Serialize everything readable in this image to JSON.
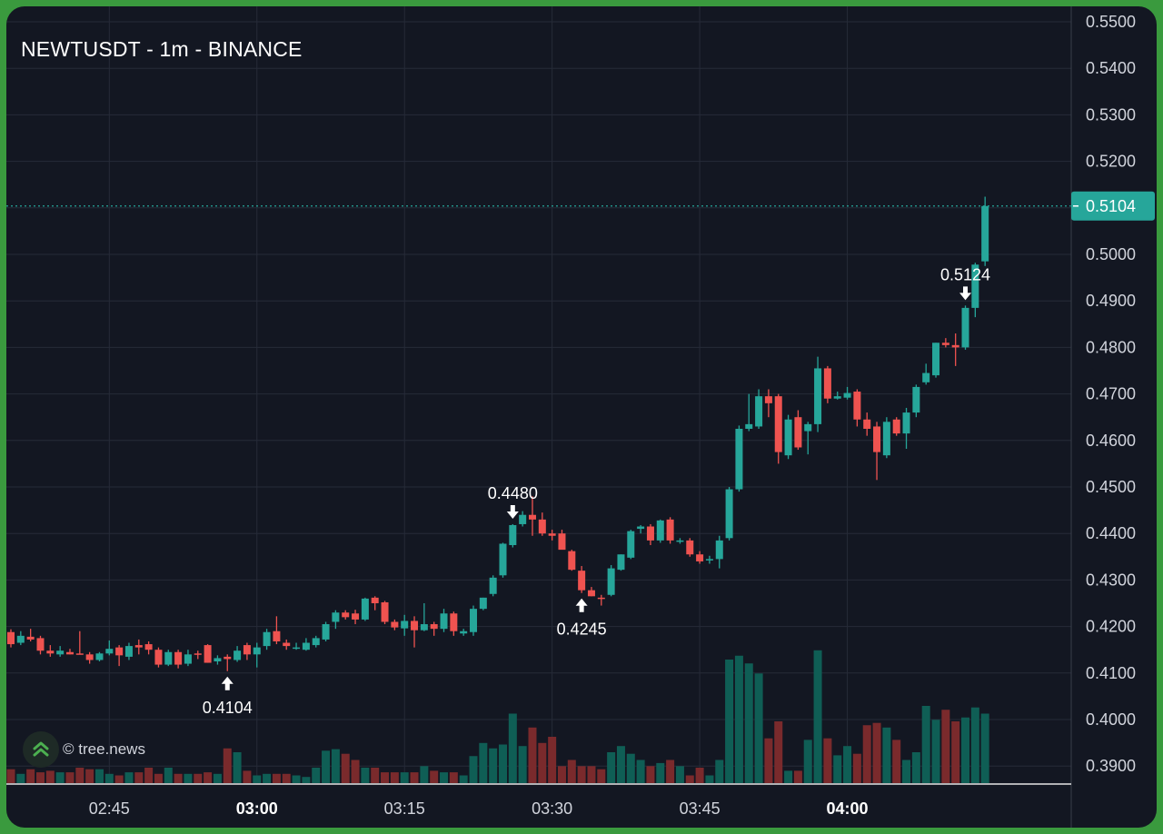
{
  "header": {
    "title": "NEWTUSDT - 1m - BINANCE"
  },
  "watermark": {
    "text": "© tree.news",
    "icon": "tree-news-logo-icon"
  },
  "colors": {
    "background": "#131722",
    "grid": "#262b38",
    "up": "#26a69a",
    "down": "#ef5350",
    "up_volume": "#0f5e55",
    "down_volume": "#7a2a2c",
    "price_line": "#26a69a",
    "text": "#d1d4dc"
  },
  "chart_data": {
    "type": "candlestick",
    "symbol": "NEWTUSDT",
    "interval": "1m",
    "exchange": "BINANCE",
    "y_ticks": [
      "0.5500",
      "0.5400",
      "0.5300",
      "0.5200",
      "0.5100",
      "0.5000",
      "0.4900",
      "0.4800",
      "0.4700",
      "0.4600",
      "0.4500",
      "0.4400",
      "0.4300",
      "0.4200",
      "0.4100",
      "0.4000",
      "0.3900"
    ],
    "ylim": [
      0.388,
      0.553
    ],
    "x_ticks": [
      {
        "label": "02:45",
        "index": 10,
        "bold": false
      },
      {
        "label": "03:00",
        "index": 25,
        "bold": true
      },
      {
        "label": "03:15",
        "index": 40,
        "bold": false
      },
      {
        "label": "03:30",
        "index": 55,
        "bold": false
      },
      {
        "label": "03:45",
        "index": 70,
        "bold": false
      },
      {
        "label": "04:00",
        "index": 85,
        "bold": true
      }
    ],
    "last_price": "0.5104",
    "last_price_value": 0.5104,
    "annotations": [
      {
        "label": "0.4104",
        "value": 0.4104,
        "index": 22,
        "type": "low"
      },
      {
        "label": "0.4480",
        "value": 0.448,
        "index": 51,
        "type": "high"
      },
      {
        "label": "0.4245",
        "value": 0.4245,
        "index": 58,
        "type": "low"
      },
      {
        "label": "0.5124",
        "value": 0.5124,
        "index": 97,
        "type": "high"
      }
    ],
    "candles": [
      [
        0.4188,
        0.4194,
        0.4155,
        0.4162
      ],
      [
        0.4165,
        0.419,
        0.416,
        0.418
      ],
      [
        0.4178,
        0.4195,
        0.4168,
        0.4172
      ],
      [
        0.4175,
        0.418,
        0.414,
        0.4148
      ],
      [
        0.4148,
        0.416,
        0.4135,
        0.4142
      ],
      [
        0.414,
        0.4158,
        0.4135,
        0.4148
      ],
      [
        0.4145,
        0.4152,
        0.414,
        0.414
      ],
      [
        0.4142,
        0.419,
        0.414,
        0.414
      ],
      [
        0.414,
        0.4145,
        0.412,
        0.4128
      ],
      [
        0.4128,
        0.4145,
        0.4125,
        0.4142
      ],
      [
        0.4142,
        0.417,
        0.4138,
        0.4152
      ],
      [
        0.4155,
        0.416,
        0.4115,
        0.4138
      ],
      [
        0.4135,
        0.4165,
        0.4128,
        0.4158
      ],
      [
        0.416,
        0.4172,
        0.414,
        0.4155
      ],
      [
        0.4162,
        0.4168,
        0.414,
        0.415
      ],
      [
        0.415,
        0.4155,
        0.4112,
        0.4118
      ],
      [
        0.4118,
        0.415,
        0.4115,
        0.4145
      ],
      [
        0.4145,
        0.415,
        0.411,
        0.4118
      ],
      [
        0.412,
        0.415,
        0.4115,
        0.414
      ],
      [
        0.4142,
        0.4148,
        0.413,
        0.414
      ],
      [
        0.416,
        0.4162,
        0.4122,
        0.4122
      ],
      [
        0.4125,
        0.4138,
        0.4118,
        0.4132
      ],
      [
        0.4135,
        0.414,
        0.4104,
        0.413
      ],
      [
        0.4128,
        0.4158,
        0.4124,
        0.4148
      ],
      [
        0.416,
        0.4165,
        0.4128,
        0.414
      ],
      [
        0.414,
        0.4165,
        0.4112,
        0.4155
      ],
      [
        0.4158,
        0.4195,
        0.415,
        0.4188
      ],
      [
        0.419,
        0.4222,
        0.4162,
        0.4168
      ],
      [
        0.4165,
        0.4172,
        0.415,
        0.4158
      ],
      [
        0.4155,
        0.4165,
        0.415,
        0.4155
      ],
      [
        0.415,
        0.4175,
        0.4148,
        0.4165
      ],
      [
        0.416,
        0.418,
        0.4155,
        0.4175
      ],
      [
        0.4172,
        0.421,
        0.4168,
        0.4205
      ],
      [
        0.421,
        0.4235,
        0.4195,
        0.423
      ],
      [
        0.423,
        0.4235,
        0.4215,
        0.422
      ],
      [
        0.4228,
        0.4236,
        0.4205,
        0.4215
      ],
      [
        0.4215,
        0.4262,
        0.4212,
        0.426
      ],
      [
        0.4262,
        0.4265,
        0.4235,
        0.425
      ],
      [
        0.4252,
        0.4255,
        0.4205,
        0.421
      ],
      [
        0.421,
        0.4215,
        0.4192,
        0.4198
      ],
      [
        0.4196,
        0.4225,
        0.418,
        0.4212
      ],
      [
        0.4212,
        0.4222,
        0.4155,
        0.4192
      ],
      [
        0.4192,
        0.425,
        0.419,
        0.4205
      ],
      [
        0.4205,
        0.421,
        0.418,
        0.4195
      ],
      [
        0.4195,
        0.4238,
        0.4188,
        0.4228
      ],
      [
        0.4228,
        0.4232,
        0.418,
        0.419
      ],
      [
        0.4185,
        0.4195,
        0.418,
        0.419
      ],
      [
        0.4188,
        0.4245,
        0.418,
        0.4238
      ],
      [
        0.4238,
        0.4262,
        0.4235,
        0.4262
      ],
      [
        0.427,
        0.431,
        0.4265,
        0.4305
      ],
      [
        0.431,
        0.438,
        0.4305,
        0.4378
      ],
      [
        0.4375,
        0.442,
        0.437,
        0.4418
      ],
      [
        0.442,
        0.4448,
        0.4415,
        0.444
      ],
      [
        0.444,
        0.448,
        0.4395,
        0.443
      ],
      [
        0.443,
        0.4445,
        0.4395,
        0.44
      ],
      [
        0.44,
        0.4408,
        0.4385,
        0.4395
      ],
      [
        0.44,
        0.4408,
        0.437,
        0.4365
      ],
      [
        0.4362,
        0.4365,
        0.432,
        0.4322
      ],
      [
        0.432,
        0.433,
        0.4272,
        0.4278
      ],
      [
        0.4278,
        0.4285,
        0.4265,
        0.4265
      ],
      [
        0.4262,
        0.4268,
        0.4245,
        0.426
      ],
      [
        0.4268,
        0.4332,
        0.4265,
        0.4325
      ],
      [
        0.4322,
        0.4355,
        0.432,
        0.4355
      ],
      [
        0.4348,
        0.4408,
        0.4345,
        0.4405
      ],
      [
        0.441,
        0.4418,
        0.44,
        0.4415
      ],
      [
        0.4415,
        0.442,
        0.4375,
        0.4385
      ],
      [
        0.4385,
        0.443,
        0.438,
        0.4428
      ],
      [
        0.443,
        0.4435,
        0.4378,
        0.4385
      ],
      [
        0.4382,
        0.439,
        0.4378,
        0.4385
      ],
      [
        0.4385,
        0.439,
        0.435,
        0.4355
      ],
      [
        0.4355,
        0.4362,
        0.4335,
        0.434
      ],
      [
        0.4342,
        0.4352,
        0.4335,
        0.4345
      ],
      [
        0.4345,
        0.4395,
        0.4325,
        0.4385
      ],
      [
        0.439,
        0.45,
        0.4385,
        0.4495
      ],
      [
        0.4495,
        0.4632,
        0.449,
        0.4625
      ],
      [
        0.4625,
        0.47,
        0.462,
        0.4635
      ],
      [
        0.463,
        0.471,
        0.4625,
        0.4695
      ],
      [
        0.4695,
        0.471,
        0.465,
        0.468
      ],
      [
        0.4695,
        0.47,
        0.455,
        0.4575
      ],
      [
        0.4568,
        0.4655,
        0.456,
        0.4645
      ],
      [
        0.465,
        0.4665,
        0.458,
        0.4585
      ],
      [
        0.462,
        0.464,
        0.457,
        0.4635
      ],
      [
        0.4635,
        0.478,
        0.4618,
        0.4755
      ],
      [
        0.4755,
        0.476,
        0.468,
        0.469
      ],
      [
        0.469,
        0.4705,
        0.4688,
        0.4695
      ],
      [
        0.4692,
        0.4715,
        0.4688,
        0.4702
      ],
      [
        0.4705,
        0.471,
        0.463,
        0.4645
      ],
      [
        0.4645,
        0.466,
        0.461,
        0.4625
      ],
      [
        0.463,
        0.464,
        0.4515,
        0.4575
      ],
      [
        0.4568,
        0.465,
        0.4562,
        0.464
      ],
      [
        0.4645,
        0.465,
        0.461,
        0.4615
      ],
      [
        0.4615,
        0.467,
        0.4582,
        0.466
      ],
      [
        0.466,
        0.472,
        0.465,
        0.4715
      ],
      [
        0.4725,
        0.4765,
        0.472,
        0.4745
      ],
      [
        0.474,
        0.481,
        0.4735,
        0.481
      ],
      [
        0.481,
        0.482,
        0.48,
        0.4805
      ],
      [
        0.4805,
        0.483,
        0.476,
        0.48
      ],
      [
        0.48,
        0.489,
        0.4795,
        0.4885
      ],
      [
        0.4885,
        0.4982,
        0.4865,
        0.4978
      ],
      [
        0.4985,
        0.5124,
        0.4975,
        0.5104
      ]
    ],
    "volumes": [
      18,
      12,
      18,
      14,
      16,
      14,
      14,
      20,
      18,
      18,
      12,
      10,
      14,
      14,
      20,
      12,
      20,
      12,
      12,
      12,
      14,
      12,
      45,
      40,
      16,
      10,
      12,
      12,
      12,
      10,
      8,
      20,
      42,
      44,
      38,
      30,
      20,
      20,
      14,
      14,
      14,
      14,
      22,
      16,
      14,
      14,
      10,
      35,
      52,
      45,
      50,
      90,
      48,
      72,
      52,
      60,
      22,
      30,
      22,
      22,
      18,
      40,
      48,
      38,
      30,
      22,
      26,
      30,
      22,
      10,
      20,
      10,
      30,
      160,
      165,
      155,
      142,
      58,
      80,
      16,
      16,
      56,
      172,
      58,
      36,
      48,
      38,
      75,
      78,
      72,
      56,
      30,
      40,
      100,
      82,
      95,
      80,
      85,
      98,
      90
    ],
    "volume_scale_max": 200
  }
}
